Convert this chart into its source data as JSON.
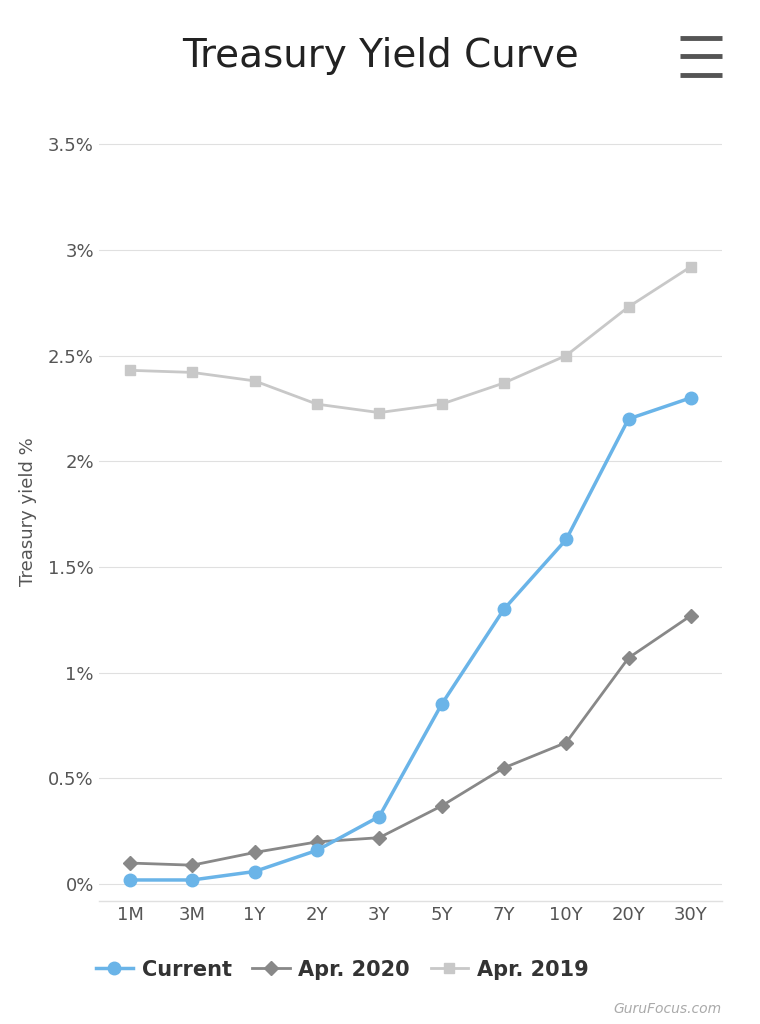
{
  "title": "Treasury Yield Curve",
  "ylabel": "Treasury yield %",
  "x_labels": [
    "1M",
    "3M",
    "1Y",
    "2Y",
    "3Y",
    "5Y",
    "7Y",
    "10Y",
    "20Y",
    "30Y"
  ],
  "current": [
    0.02,
    0.02,
    0.06,
    0.16,
    0.32,
    0.85,
    1.3,
    1.63,
    2.2,
    2.3
  ],
  "apr2020": [
    0.1,
    0.09,
    0.15,
    0.2,
    0.22,
    0.37,
    0.55,
    0.67,
    1.07,
    1.27
  ],
  "apr2019": [
    2.43,
    2.42,
    2.38,
    2.27,
    2.23,
    2.27,
    2.37,
    2.5,
    2.73,
    2.92
  ],
  "current_color": "#6ab4e8",
  "apr2020_color": "#888888",
  "apr2019_color": "#c8c8c8",
  "background_color": "#ffffff",
  "grid_color": "#e0e0e0",
  "title_fontsize": 28,
  "label_fontsize": 13,
  "legend_fontsize": 15,
  "tick_fontsize": 13,
  "watermark": "GuruFocus.com"
}
